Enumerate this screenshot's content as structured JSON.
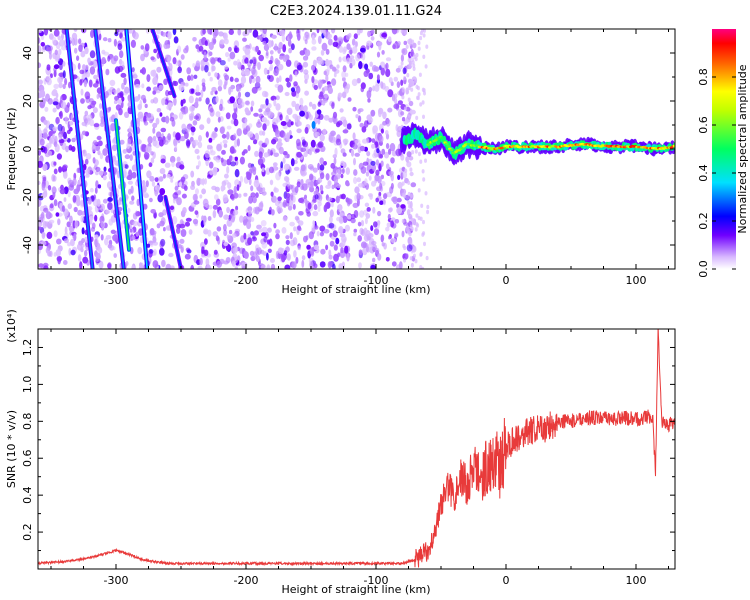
{
  "title": "C2E3.2024.139.01.11.G24",
  "chart_data": [
    {
      "type": "heatmap",
      "xlabel": "Height of straight line (km)",
      "ylabel": "Frequency (Hz)",
      "xlim": [
        -360,
        130
      ],
      "ylim": [
        -50,
        50
      ],
      "x_ticks": [
        -300,
        -200,
        -100,
        0,
        100
      ],
      "y_ticks": [
        -40,
        -20,
        0,
        20,
        40
      ],
      "colorbar": {
        "label": "Normalized spectral amplitude",
        "range": [
          0,
          1
        ],
        "ticks": [
          0.0,
          0.2,
          0.4,
          0.6,
          0.8
        ],
        "colors": [
          "#ffffff",
          "#c080ff",
          "#6000ff",
          "#0000ff",
          "#00e0ff",
          "#00ff00",
          "#ffff00",
          "#ff0000",
          "#ff0080"
        ]
      },
      "streaks": [
        {
          "x_top": -338,
          "x_bottom": -318,
          "y_top": 50,
          "y_bottom": -50,
          "level": 0.3
        },
        {
          "x_top": -316,
          "x_bottom": -294,
          "y_top": 50,
          "y_bottom": -50,
          "level": 0.3
        },
        {
          "x_top": -300,
          "x_bottom": -290,
          "y_top": 12,
          "y_bottom": -42,
          "level": 0.5
        },
        {
          "x_top": -292,
          "x_bottom": -276,
          "y_top": 50,
          "y_bottom": -50,
          "level": 0.35
        },
        {
          "x_top": -272,
          "x_bottom": -255,
          "y_top": 50,
          "y_bottom": 22,
          "level": 0.25
        },
        {
          "x_top": -262,
          "x_bottom": -250,
          "y_top": -20,
          "y_bottom": -50,
          "level": 0.25
        }
      ],
      "signal_band": {
        "points": [
          [
            -80,
            3
          ],
          [
            -70,
            6
          ],
          [
            -60,
            2
          ],
          [
            -50,
            5
          ],
          [
            -40,
            -2
          ],
          [
            -30,
            2
          ],
          [
            -20,
            1
          ],
          [
            -10,
            0
          ],
          [
            0,
            1
          ],
          [
            20,
            1
          ],
          [
            40,
            1
          ],
          [
            60,
            2
          ],
          [
            80,
            1
          ],
          [
            100,
            1
          ],
          [
            115,
            0
          ],
          [
            130,
            1
          ]
        ]
      }
    },
    {
      "type": "line",
      "xlabel": "Height of straight line (km)",
      "ylabel": "SNR (10 * v/v)",
      "scale_label": "(x10⁴)",
      "xlim": [
        -360,
        130
      ],
      "ylim": [
        0,
        1.3
      ],
      "x_ticks": [
        -300,
        -200,
        -100,
        0,
        100
      ],
      "y_ticks": [
        0.2,
        0.4,
        0.6,
        0.8,
        1.0,
        1.2
      ],
      "series": [
        {
          "color": "#e83a3a",
          "x": [
            -360,
            -340,
            -320,
            -310,
            -300,
            -290,
            -280,
            -260,
            -240,
            -200,
            -160,
            -120,
            -100,
            -80,
            -70,
            -60,
            -55,
            -50,
            -45,
            -40,
            -35,
            -30,
            -25,
            -20,
            -15,
            -10,
            -5,
            0,
            5,
            10,
            20,
            30,
            40,
            50,
            60,
            70,
            80,
            90,
            100,
            105,
            110,
            113,
            115,
            117,
            120,
            125,
            130
          ],
          "y": [
            0.03,
            0.04,
            0.06,
            0.08,
            0.1,
            0.08,
            0.05,
            0.03,
            0.03,
            0.03,
            0.03,
            0.03,
            0.03,
            0.03,
            0.05,
            0.1,
            0.2,
            0.35,
            0.45,
            0.4,
            0.5,
            0.45,
            0.55,
            0.5,
            0.55,
            0.6,
            0.55,
            0.65,
            0.7,
            0.72,
            0.75,
            0.76,
            0.8,
            0.8,
            0.82,
            0.82,
            0.81,
            0.82,
            0.81,
            0.82,
            0.83,
            0.8,
            0.5,
            1.3,
            0.8,
            0.78,
            0.8
          ]
        }
      ]
    }
  ]
}
